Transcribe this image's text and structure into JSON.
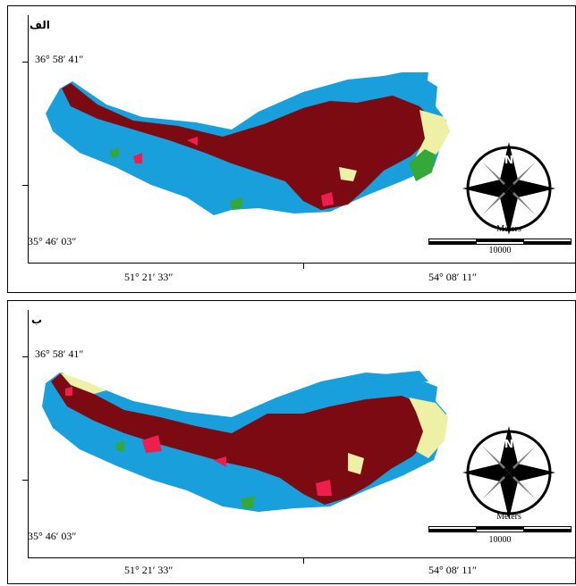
{
  "colors": {
    "forest": "#7b0a12",
    "water": "#189fdc",
    "grassland": "#eef0a6",
    "green": "#34a838",
    "red": "#ee1f4e"
  },
  "panels": [
    {
      "label": "الف",
      "lat_top": "36° 58′ 41″",
      "lat_bottom": "35° 46′ 03″",
      "lon_left": "51° 21′ 33″",
      "lon_right": "54° 08′ 11″",
      "scale_unit": "Meters",
      "scale_value": "10000",
      "north_label": "N"
    },
    {
      "label": "ب",
      "lat_top": "36° 58′ 41″",
      "lat_bottom": "35° 46′ 03″",
      "lon_left": "51° 21′ 33″",
      "lon_right": "54° 08′ 11″",
      "scale_unit": "Meters",
      "scale_value": "10000",
      "north_label": "N"
    }
  ]
}
